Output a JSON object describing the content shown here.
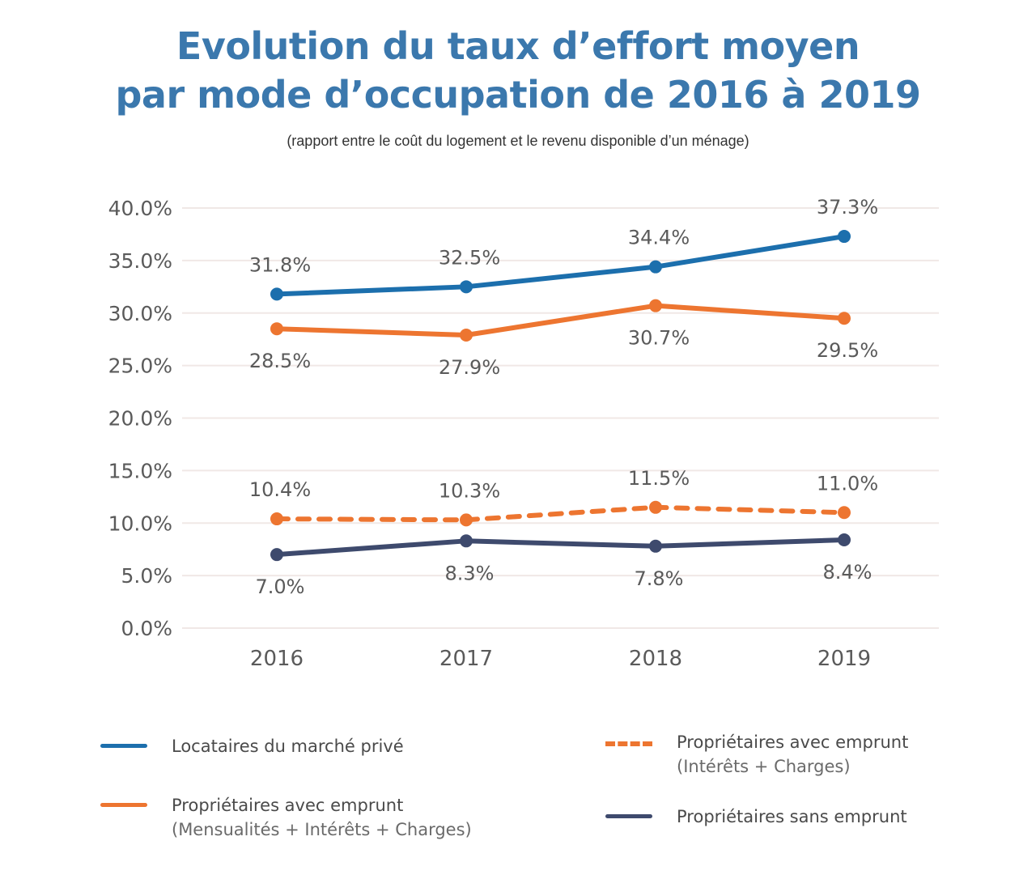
{
  "title_line1": "Evolution du taux d’effort moyen",
  "title_line2": "par mode d’occupation de 2016 à 2019",
  "subtitle": "(rapport entre le coût du logement et le revenu disponible d’un ménage)",
  "colors": {
    "title": "#3b78ad",
    "locataires": "#1c6fad",
    "proprietaires_emprunt": "#ed7530",
    "proprietaires_interets": "#ed7530",
    "proprietaires_sans": "#3e4a6d",
    "grid": "#f0e8e6"
  },
  "chart_data": {
    "type": "line",
    "title": "Evolution du taux d’effort moyen par mode d’occupation de 2016 à 2019",
    "subtitle": "(rapport entre le coût du logement et le revenu disponible d’un ménage)",
    "x": [
      "2016",
      "2017",
      "2018",
      "2019"
    ],
    "xlabel": "",
    "ylabel": "",
    "ylim": [
      0,
      40
    ],
    "yticks": [
      0,
      5,
      10,
      15,
      20,
      25,
      30,
      35,
      40
    ],
    "ytick_labels": [
      "0.0%",
      "5.0%",
      "10.0%",
      "15.0%",
      "20.0%",
      "25.0%",
      "30.0%",
      "35.0%",
      "40.0%"
    ],
    "grid": true,
    "legend_position": "bottom",
    "series": [
      {
        "name": "Locataires du marché privé",
        "sub": "",
        "values": [
          31.8,
          32.5,
          34.4,
          37.3
        ],
        "labels": [
          "31.8%",
          "32.5%",
          "34.4%",
          "37.3%"
        ],
        "label_position": "above",
        "style": "solid",
        "color": "#1c6fad"
      },
      {
        "name": "Propriétaires avec emprunt",
        "sub": "(Mensualités + Intérêts + Charges)",
        "values": [
          28.5,
          27.9,
          30.7,
          29.5
        ],
        "labels": [
          "28.5%",
          "27.9%",
          "30.7%",
          "29.5%"
        ],
        "label_position": "below",
        "style": "solid",
        "color": "#ed7530"
      },
      {
        "name": "Propriétaires avec emprunt",
        "sub": "(Intérêts + Charges)",
        "values": [
          10.4,
          10.3,
          11.5,
          11.0
        ],
        "labels": [
          "10.4%",
          "10.3%",
          "11.5%",
          "11.0%"
        ],
        "label_position": "above",
        "style": "dashed",
        "color": "#ed7530"
      },
      {
        "name": "Propriétaires sans emprunt",
        "sub": "",
        "values": [
          7.0,
          8.3,
          7.8,
          8.4
        ],
        "labels": [
          "7.0%",
          "8.3%",
          "7.8%",
          "8.4%"
        ],
        "label_position": "below",
        "style": "solid",
        "color": "#3e4a6d"
      }
    ]
  },
  "legend": [
    {
      "label": "Locataires du marché privé",
      "sub": ""
    },
    {
      "label": "Propriétaires avec emprunt",
      "sub": "(Mensualités + Intérêts + Charges)"
    },
    {
      "label": "Propriétaires avec emprunt",
      "sub": "(Intérêts + Charges)"
    },
    {
      "label": "Propriétaires sans emprunt",
      "sub": ""
    }
  ]
}
